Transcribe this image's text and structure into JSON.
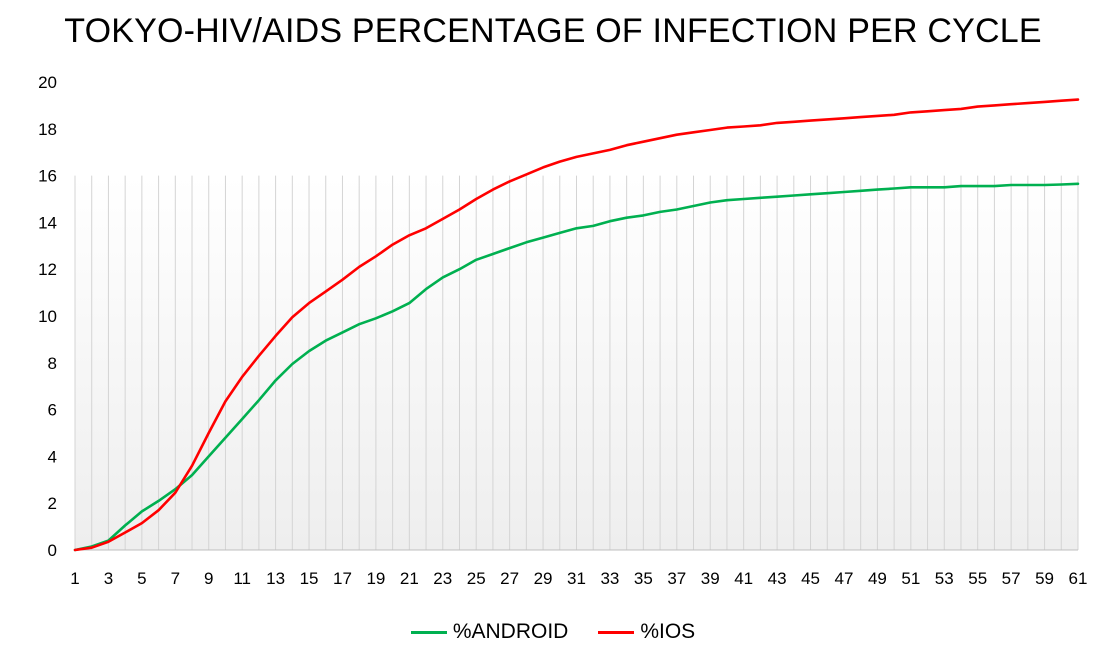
{
  "chart_data": {
    "type": "line",
    "title": "TOKYO-HIV/AIDS PERCENTAGE OF INFECTION PER CYCLE",
    "xlabel": "",
    "ylabel": "",
    "x": [
      1,
      2,
      3,
      4,
      5,
      6,
      7,
      8,
      9,
      10,
      11,
      12,
      13,
      14,
      15,
      16,
      17,
      18,
      19,
      20,
      21,
      22,
      23,
      24,
      25,
      26,
      27,
      28,
      29,
      30,
      31,
      32,
      33,
      34,
      35,
      36,
      37,
      38,
      39,
      40,
      41,
      42,
      43,
      44,
      45,
      46,
      47,
      48,
      49,
      50,
      51,
      52,
      53,
      54,
      55,
      56,
      57,
      58,
      59,
      60,
      61
    ],
    "x_tick_labels": [
      "1",
      "3",
      "5",
      "7",
      "9",
      "11",
      "13",
      "15",
      "17",
      "19",
      "21",
      "23",
      "25",
      "27",
      "29",
      "31",
      "33",
      "35",
      "37",
      "39",
      "41",
      "43",
      "45",
      "47",
      "49",
      "51",
      "53",
      "55",
      "57",
      "59",
      "61"
    ],
    "ylim": [
      0,
      20
    ],
    "y_ticks": [
      "0",
      "2",
      "4",
      "6",
      "8",
      "10",
      "12",
      "14",
      "16",
      "18",
      "20"
    ],
    "grid": "vertical",
    "legend_position": "bottom",
    "series": [
      {
        "name": "%ANDROID",
        "color": "#00b050",
        "values": [
          0.0,
          0.15,
          0.4,
          1.05,
          1.65,
          2.1,
          2.6,
          3.2,
          4.0,
          4.8,
          5.6,
          6.4,
          7.25,
          7.95,
          8.5,
          8.95,
          9.3,
          9.65,
          9.9,
          10.2,
          10.55,
          11.15,
          11.65,
          12.0,
          12.4,
          12.65,
          12.9,
          13.15,
          13.35,
          13.55,
          13.75,
          13.85,
          14.05,
          14.2,
          14.3,
          14.45,
          14.55,
          14.7,
          14.85,
          14.95,
          15.0,
          15.05,
          15.1,
          15.15,
          15.2,
          15.25,
          15.3,
          15.35,
          15.4,
          15.45,
          15.5,
          15.5,
          15.5,
          15.55,
          15.55,
          15.55,
          15.6,
          15.6,
          15.6,
          15.62,
          15.65
        ]
      },
      {
        "name": "%IOS",
        "color": "#ff0000",
        "values": [
          0.0,
          0.1,
          0.35,
          0.75,
          1.15,
          1.7,
          2.45,
          3.6,
          5.0,
          6.35,
          7.4,
          8.3,
          9.15,
          9.95,
          10.55,
          11.05,
          11.55,
          12.1,
          12.55,
          13.05,
          13.45,
          13.75,
          14.15,
          14.55,
          15.0,
          15.4,
          15.75,
          16.05,
          16.35,
          16.6,
          16.8,
          16.95,
          17.1,
          17.3,
          17.45,
          17.6,
          17.75,
          17.85,
          17.95,
          18.05,
          18.1,
          18.15,
          18.25,
          18.3,
          18.35,
          18.4,
          18.45,
          18.5,
          18.55,
          18.6,
          18.7,
          18.75,
          18.8,
          18.85,
          18.95,
          19.0,
          19.05,
          19.1,
          19.15,
          19.2,
          19.25
        ]
      }
    ]
  }
}
